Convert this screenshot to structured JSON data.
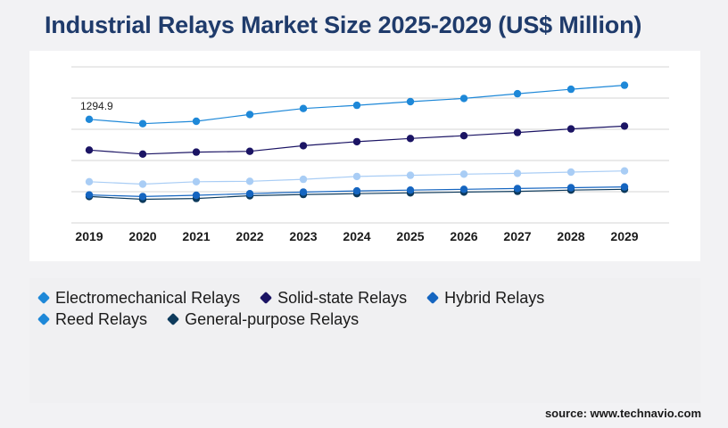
{
  "title": "Industrial Relays Market Size 2025-2029 (US$ Million)",
  "source": "source: www.technavio.com",
  "chart_data": {
    "type": "line",
    "title": "Industrial Relays Market Size 2025-2029 (US$ Million)",
    "categories": [
      "2019",
      "2020",
      "2021",
      "2022",
      "2023",
      "2024",
      "2025",
      "2026",
      "2027",
      "2028",
      "2029"
    ],
    "annotations": [
      {
        "series": "Electromechanical Relays",
        "x": "2019",
        "text": "1294.9"
      }
    ],
    "grid": true,
    "legend_position": "bottom",
    "ylim": [
      0,
      1950
    ],
    "series": [
      {
        "name": "Electromechanical Relays",
        "color": "#1e88d8",
        "values": [
          1294.9,
          1240,
          1270,
          1355,
          1430,
          1470,
          1515,
          1555,
          1615,
          1670,
          1720
        ]
      },
      {
        "name": "Solid-state Relays",
        "color": "#1b1464",
        "values": [
          910,
          860,
          885,
          895,
          965,
          1015,
          1055,
          1090,
          1130,
          1175,
          1210
        ]
      },
      {
        "name": "Hybrid Relays",
        "color": "#a9cdf5",
        "values": [
          515,
          485,
          515,
          520,
          545,
          580,
          595,
          610,
          620,
          635,
          650
        ]
      },
      {
        "name": "Reed Relays",
        "color": "#1565c0",
        "values": [
          350,
          330,
          345,
          365,
          385,
          400,
          410,
          420,
          430,
          440,
          450
        ]
      },
      {
        "name": "General-purpose Relays",
        "color": "#0d3a5c",
        "values": [
          330,
          295,
          305,
          340,
          355,
          365,
          375,
          385,
          395,
          410,
          420
        ]
      }
    ]
  }
}
